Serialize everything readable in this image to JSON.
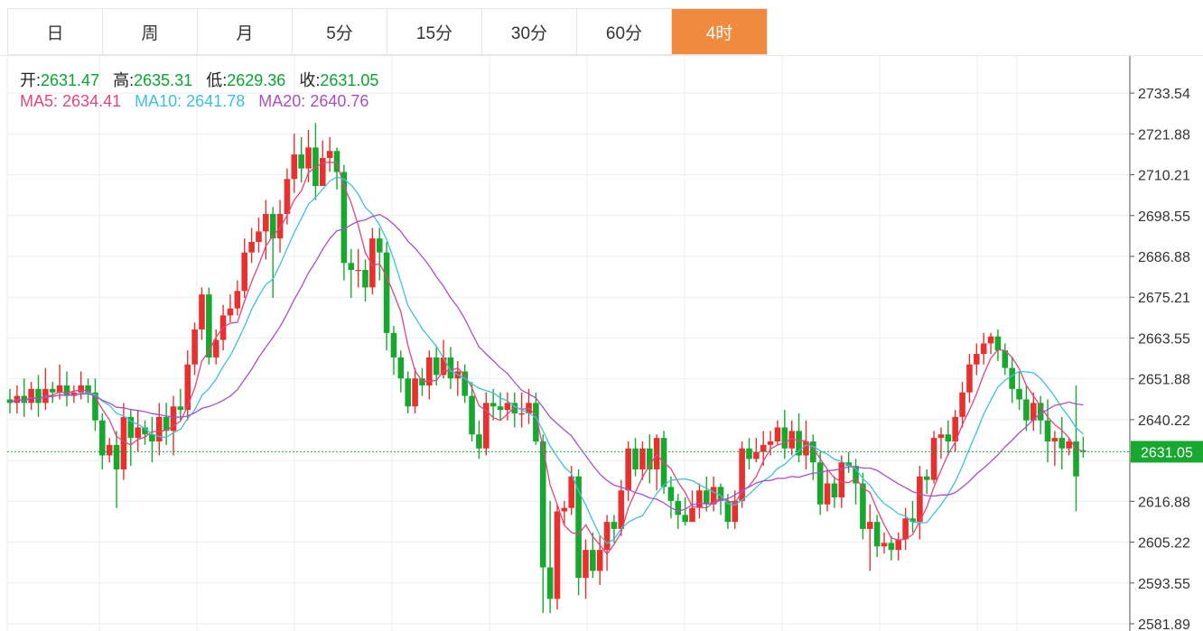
{
  "tabs": [
    {
      "label": "日",
      "active": false
    },
    {
      "label": "周",
      "active": false
    },
    {
      "label": "月",
      "active": false
    },
    {
      "label": "5分",
      "active": false
    },
    {
      "label": "15分",
      "active": false
    },
    {
      "label": "30分",
      "active": false
    },
    {
      "label": "60分",
      "active": false
    },
    {
      "label": "4时",
      "active": true
    }
  ],
  "ohlc": {
    "open_label": "开:",
    "open": "2631.47",
    "high_label": "高:",
    "high": "2635.31",
    "low_label": "低:",
    "low": "2629.36",
    "close_label": "收:",
    "close": "2631.05"
  },
  "ma": {
    "ma5_label": "MA5:",
    "ma5": "2634.41",
    "ma10_label": "MA10:",
    "ma10": "2641.78",
    "ma20_label": "MA20:",
    "ma20": "2640.76"
  },
  "colors": {
    "up": "#e8312f",
    "down": "#18a82f",
    "ma5": "#e0467f",
    "ma10": "#3ec3d6",
    "ma20": "#a751c7",
    "active_tab": "#f08a3e",
    "last_price": "#18a82f"
  },
  "chart_data": {
    "type": "candlestick",
    "y_ticks": [
      2581.89,
      2593.55,
      2605.22,
      2616.88,
      2628.55,
      2640.22,
      2651.88,
      2663.54,
      2675.21,
      2686.88,
      2698.55,
      2710.21,
      2721.88,
      2733.54
    ],
    "y_tick_labels": [
      "2581.89",
      "2593.55",
      "2605.22",
      "2616.88",
      "",
      "2640.22",
      "2651.88",
      "2663.55",
      "2675.21",
      "2686.88",
      "2698.55",
      "2710.21",
      "2721.88",
      "2733.54"
    ],
    "ylim": [
      2580.3,
      2743.3
    ],
    "last_price": 2631.05,
    "last_price_label": "2631.05",
    "candles": [
      [
        2646,
        2645,
        2649,
        2642
      ],
      [
        2645,
        2647,
        2650,
        2642
      ],
      [
        2647,
        2645,
        2652,
        2641
      ],
      [
        2645,
        2649,
        2651,
        2643
      ],
      [
        2649,
        2645,
        2653,
        2641
      ],
      [
        2645,
        2649,
        2655,
        2643
      ],
      [
        2649,
        2648,
        2651,
        2645
      ],
      [
        2648,
        2650,
        2656,
        2646
      ],
      [
        2650,
        2647,
        2654,
        2644
      ],
      [
        2647,
        2648,
        2650,
        2645
      ],
      [
        2648,
        2650,
        2654,
        2646
      ],
      [
        2650,
        2648,
        2652,
        2645
      ],
      [
        2648,
        2640,
        2652,
        2637
      ],
      [
        2640,
        2630,
        2642,
        2626
      ],
      [
        2630,
        2633,
        2635,
        2628
      ],
      [
        2633,
        2626,
        2637,
        2615
      ],
      [
        2626,
        2641,
        2645,
        2623
      ],
      [
        2641,
        2635,
        2643,
        2627
      ],
      [
        2635,
        2638,
        2643,
        2631
      ],
      [
        2638,
        2636,
        2640,
        2633
      ],
      [
        2636,
        2634,
        2641,
        2628
      ],
      [
        2634,
        2641,
        2645,
        2630
      ],
      [
        2641,
        2637,
        2645,
        2633
      ],
      [
        2637,
        2644,
        2647,
        2630
      ],
      [
        2644,
        2643,
        2649,
        2640
      ],
      [
        2643,
        2656,
        2660,
        2640
      ],
      [
        2656,
        2666,
        2668,
        2653
      ],
      [
        2666,
        2676,
        2678,
        2663
      ],
      [
        2676,
        2658,
        2678,
        2656
      ],
      [
        2658,
        2663,
        2666,
        2656
      ],
      [
        2663,
        2670,
        2673,
        2660
      ],
      [
        2670,
        2672,
        2676,
        2668
      ],
      [
        2672,
        2677,
        2680,
        2670
      ],
      [
        2677,
        2688,
        2692,
        2675
      ],
      [
        2688,
        2691,
        2695,
        2685
      ],
      [
        2691,
        2694,
        2698,
        2688
      ],
      [
        2694,
        2699,
        2703,
        2686
      ],
      [
        2699,
        2692,
        2701,
        2675
      ],
      [
        2692,
        2699,
        2703,
        2688
      ],
      [
        2699,
        2709,
        2712,
        2696
      ],
      [
        2709,
        2716,
        2722,
        2705
      ],
      [
        2716,
        2712,
        2721,
        2708
      ],
      [
        2712,
        2718,
        2723,
        2708
      ],
      [
        2718,
        2707,
        2725,
        2703
      ],
      [
        2707,
        2715,
        2720,
        2708
      ],
      [
        2715,
        2717,
        2721,
        2711
      ],
      [
        2717,
        2711,
        2718,
        2706
      ],
      [
        2711,
        2685,
        2713,
        2680
      ],
      [
        2685,
        2683,
        2689,
        2675
      ],
      [
        2683,
        2683,
        2689,
        2678
      ],
      [
        2683,
        2678,
        2686,
        2674
      ],
      [
        2678,
        2692,
        2695,
        2676
      ],
      [
        2692,
        2688,
        2695,
        2680
      ],
      [
        2688,
        2665,
        2691,
        2660
      ],
      [
        2665,
        2658,
        2667,
        2653
      ],
      [
        2658,
        2652,
        2660,
        2648
      ],
      [
        2652,
        2644,
        2654,
        2642
      ],
      [
        2644,
        2652,
        2655,
        2642
      ],
      [
        2652,
        2650,
        2655,
        2647
      ],
      [
        2650,
        2658,
        2660,
        2646
      ],
      [
        2658,
        2653,
        2661,
        2650
      ],
      [
        2653,
        2658,
        2663,
        2652
      ],
      [
        2658,
        2652,
        2661,
        2649
      ],
      [
        2652,
        2654,
        2657,
        2647
      ],
      [
        2654,
        2647,
        2656,
        2645
      ],
      [
        2647,
        2636,
        2651,
        2634
      ],
      [
        2636,
        2632,
        2640,
        2629
      ],
      [
        2632,
        2645,
        2648,
        2630
      ],
      [
        2645,
        2644,
        2649,
        2640
      ],
      [
        2644,
        2643,
        2648,
        2640
      ],
      [
        2643,
        2645,
        2648,
        2640
      ],
      [
        2645,
        2642,
        2648,
        2638
      ],
      [
        2642,
        2642,
        2648,
        2638
      ],
      [
        2642,
        2645,
        2649,
        2639
      ],
      [
        2645,
        2634,
        2648,
        2633
      ],
      [
        2634,
        2598,
        2636,
        2585
      ],
      [
        2598,
        2589,
        2617,
        2585
      ],
      [
        2589,
        2614,
        2616,
        2586
      ],
      [
        2614,
        2615,
        2617,
        2610
      ],
      [
        2615,
        2624,
        2627,
        2613
      ],
      [
        2624,
        2595,
        2626,
        2590
      ],
      [
        2595,
        2603,
        2606,
        2589
      ],
      [
        2603,
        2597,
        2608,
        2595
      ],
      [
        2597,
        2603,
        2607,
        2593
      ],
      [
        2603,
        2611,
        2613,
        2597
      ],
      [
        2611,
        2609,
        2613,
        2605
      ],
      [
        2609,
        2620,
        2623,
        2607
      ],
      [
        2620,
        2632,
        2634,
        2617
      ],
      [
        2632,
        2626,
        2635,
        2624
      ],
      [
        2626,
        2632,
        2634,
        2623
      ],
      [
        2632,
        2626,
        2636,
        2622
      ],
      [
        2626,
        2635,
        2636,
        2620
      ],
      [
        2635,
        2621,
        2637,
        2619
      ],
      [
        2621,
        2617,
        2624,
        2612
      ],
      [
        2617,
        2613,
        2619,
        2609
      ],
      [
        2613,
        2611,
        2618,
        2610
      ],
      [
        2611,
        2615,
        2620,
        2611
      ],
      [
        2615,
        2620,
        2622,
        2612
      ],
      [
        2620,
        2616,
        2624,
        2614
      ],
      [
        2616,
        2621,
        2624,
        2614
      ],
      [
        2621,
        2617,
        2622,
        2613
      ],
      [
        2617,
        2611,
        2619,
        2609
      ],
      [
        2611,
        2617,
        2620,
        2609
      ],
      [
        2617,
        2632,
        2634,
        2615
      ],
      [
        2632,
        2629,
        2635,
        2626
      ],
      [
        2629,
        2631,
        2635,
        2628
      ],
      [
        2631,
        2633,
        2637,
        2627
      ],
      [
        2633,
        2634,
        2637,
        2630
      ],
      [
        2634,
        2638,
        2640,
        2633
      ],
      [
        2638,
        2632,
        2643,
        2629
      ],
      [
        2632,
        2637,
        2640,
        2630
      ],
      [
        2637,
        2630,
        2642,
        2628
      ],
      [
        2630,
        2634,
        2640,
        2626
      ],
      [
        2634,
        2628,
        2636,
        2623
      ],
      [
        2628,
        2616,
        2631,
        2613
      ],
      [
        2616,
        2622,
        2626,
        2614
      ],
      [
        2622,
        2618,
        2624,
        2615
      ],
      [
        2618,
        2628,
        2630,
        2615
      ],
      [
        2628,
        2627,
        2631,
        2625
      ],
      [
        2627,
        2622,
        2629,
        2616
      ],
      [
        2622,
        2609,
        2625,
        2606
      ],
      [
        2609,
        2611,
        2616,
        2597
      ],
      [
        2611,
        2604,
        2613,
        2601
      ],
      [
        2604,
        2605,
        2608,
        2602
      ],
      [
        2605,
        2603,
        2607,
        2600
      ],
      [
        2603,
        2606,
        2608,
        2600
      ],
      [
        2606,
        2612,
        2615,
        2603
      ],
      [
        2612,
        2611,
        2617,
        2608
      ],
      [
        2611,
        2624,
        2627,
        2606
      ],
      [
        2624,
        2623,
        2626,
        2619
      ],
      [
        2623,
        2635,
        2637,
        2622
      ],
      [
        2635,
        2636,
        2638,
        2629
      ],
      [
        2636,
        2634,
        2640,
        2630
      ],
      [
        2634,
        2641,
        2643,
        2631
      ],
      [
        2641,
        2648,
        2651,
        2638
      ],
      [
        2648,
        2656,
        2659,
        2645
      ],
      [
        2656,
        2659,
        2662,
        2653
      ],
      [
        2659,
        2662,
        2665,
        2656
      ],
      [
        2662,
        2664,
        2665,
        2659
      ],
      [
        2664,
        2660,
        2666,
        2657
      ],
      [
        2660,
        2655,
        2662,
        2653
      ],
      [
        2655,
        2649,
        2658,
        2645
      ],
      [
        2649,
        2646,
        2654,
        2643
      ],
      [
        2646,
        2640,
        2650,
        2637
      ],
      [
        2640,
        2645,
        2648,
        2637
      ],
      [
        2645,
        2640,
        2647,
        2636
      ],
      [
        2640,
        2634,
        2646,
        2628
      ],
      [
        2634,
        2635,
        2637,
        2627
      ],
      [
        2635,
        2632,
        2641,
        2626
      ],
      [
        2632,
        2634,
        2635,
        2630
      ],
      [
        2634,
        2624,
        2650,
        2614
      ],
      [
        2631.47,
        2631.05,
        2635.31,
        2629.36
      ]
    ]
  }
}
